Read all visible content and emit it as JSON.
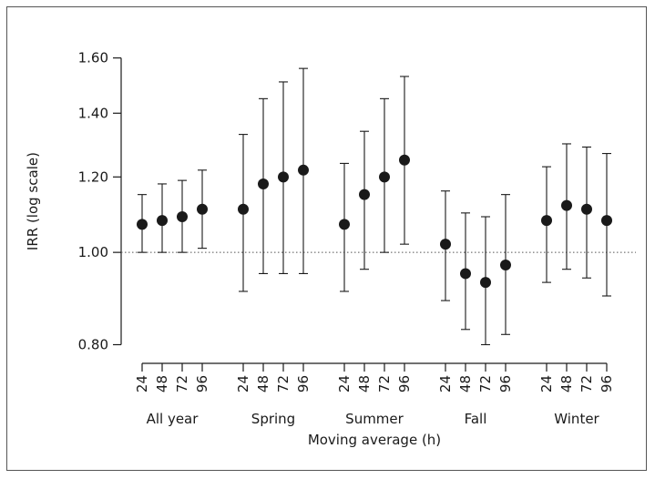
{
  "chart_data": {
    "type": "scatter",
    "title": "",
    "ylabel": "IRR (log scale)",
    "xlabel": "Moving average (h)",
    "y_scale": "log",
    "ylim": [
      0.78,
      1.62
    ],
    "yticks": [
      0.8,
      1.0,
      1.2,
      1.4,
      1.6
    ],
    "ytick_labels": [
      "0.80",
      "1.00",
      "1.20",
      "1.40",
      "1.60"
    ],
    "reference_line": 1.0,
    "errorbars": true,
    "groups": [
      {
        "name": "All year",
        "lags": [
          "24",
          "48",
          "72",
          "96"
        ],
        "estimate": [
          1.07,
          1.08,
          1.09,
          1.11
        ],
        "lower": [
          1.0,
          1.0,
          1.0,
          1.01
        ],
        "upper": [
          1.15,
          1.18,
          1.19,
          1.22
        ]
      },
      {
        "name": "Spring",
        "lags": [
          "24",
          "48",
          "72",
          "96"
        ],
        "estimate": [
          1.11,
          1.18,
          1.2,
          1.22
        ],
        "lower": [
          0.91,
          0.95,
          0.95,
          0.95
        ],
        "upper": [
          1.33,
          1.45,
          1.51,
          1.56
        ]
      },
      {
        "name": "Summer",
        "lags": [
          "24",
          "48",
          "72",
          "96"
        ],
        "estimate": [
          1.07,
          1.15,
          1.2,
          1.25
        ],
        "lower": [
          0.91,
          0.96,
          1.0,
          1.02
        ],
        "upper": [
          1.24,
          1.34,
          1.45,
          1.53
        ]
      },
      {
        "name": "Fall",
        "lags": [
          "24",
          "48",
          "72",
          "96"
        ],
        "estimate": [
          1.02,
          0.95,
          0.93,
          0.97
        ],
        "lower": [
          0.89,
          0.83,
          0.8,
          0.82
        ],
        "upper": [
          1.16,
          1.1,
          1.09,
          1.15
        ]
      },
      {
        "name": "Winter",
        "lags": [
          "24",
          "48",
          "72",
          "96"
        ],
        "estimate": [
          1.08,
          1.12,
          1.11,
          1.08
        ],
        "lower": [
          0.93,
          0.96,
          0.94,
          0.9
        ],
        "upper": [
          1.23,
          1.3,
          1.29,
          1.27
        ]
      }
    ]
  }
}
